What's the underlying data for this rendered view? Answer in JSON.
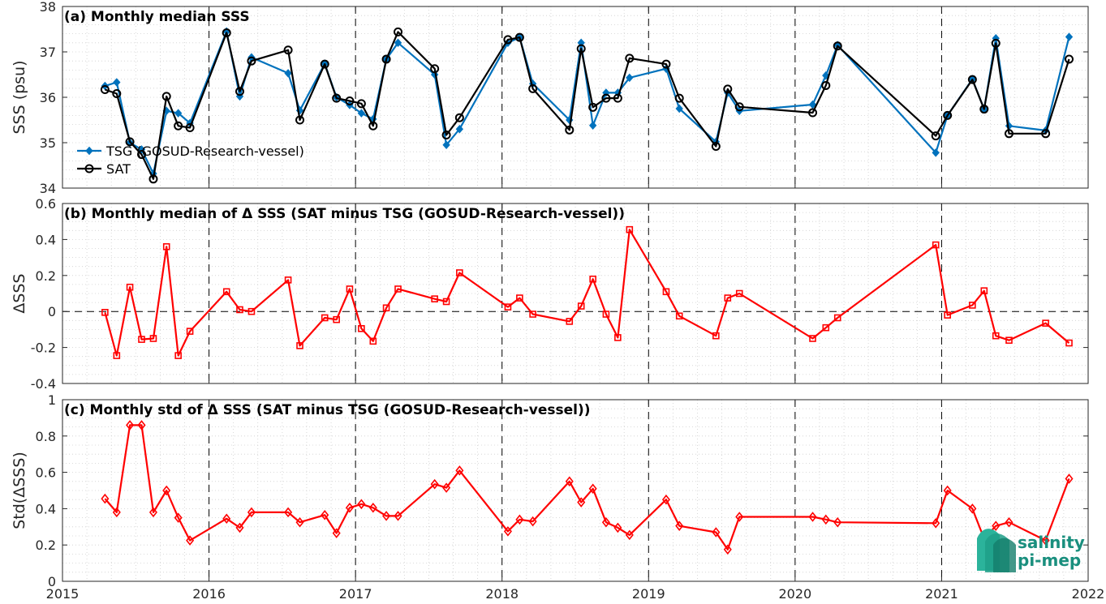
{
  "chart_data": [
    {
      "type": "line",
      "title": "(a) Monthly median SSS",
      "xlabel": "",
      "ylabel": "SSS (psu)",
      "xlim": [
        2015,
        2022
      ],
      "ylim": [
        34,
        38
      ],
      "xticks": [
        "2015",
        "2016",
        "2017",
        "2018",
        "2019",
        "2020",
        "2021",
        "2022"
      ],
      "yticks": [
        "34",
        "35",
        "36",
        "37",
        "38"
      ],
      "grid": true,
      "legend": "left",
      "series": [
        {
          "name": "TSG (GOSUD-Research-vessel)",
          "color": "#0072BD",
          "marker": "diamond-filled",
          "x": [
            2015.29,
            2015.37,
            2015.46,
            2015.54,
            2015.62,
            2015.71,
            2015.79,
            2015.87,
            2016.12,
            2016.21,
            2016.29,
            2016.54,
            2016.62,
            2016.79,
            2016.87,
            2016.96,
            2017.04,
            2017.12,
            2017.21,
            2017.29,
            2017.54,
            2017.62,
            2017.71,
            2018.04,
            2018.12,
            2018.21,
            2018.46,
            2018.54,
            2018.62,
            2018.71,
            2018.79,
            2018.87,
            2019.12,
            2019.21,
            2019.46,
            2019.54,
            2019.62,
            2020.12,
            2020.21,
            2020.29,
            2020.96,
            2021.04,
            2021.21,
            2021.29,
            2021.37,
            2021.46,
            2021.71,
            2021.87
          ],
          "y": [
            36.25,
            36.33,
            35.0,
            34.85,
            34.32,
            35.7,
            35.65,
            35.43,
            37.45,
            36.02,
            36.88,
            36.53,
            35.71,
            36.74,
            36.0,
            35.83,
            35.65,
            35.52,
            36.84,
            37.2,
            36.5,
            34.95,
            35.3,
            37.2,
            37.32,
            36.3,
            35.5,
            37.2,
            35.38,
            36.1,
            36.1,
            36.43,
            36.63,
            35.75,
            35.02,
            36.1,
            35.7,
            35.84,
            36.48,
            37.15,
            34.78,
            35.6,
            36.4,
            35.74,
            37.3,
            35.37,
            35.27,
            37.33
          ]
        },
        {
          "name": "SAT",
          "color": "#000000",
          "marker": "circle-open",
          "x": [
            2015.29,
            2015.37,
            2015.46,
            2015.54,
            2015.62,
            2015.71,
            2015.79,
            2015.87,
            2016.12,
            2016.21,
            2016.29,
            2016.54,
            2016.62,
            2016.79,
            2016.87,
            2016.96,
            2017.04,
            2017.12,
            2017.21,
            2017.29,
            2017.54,
            2017.62,
            2017.71,
            2018.04,
            2018.12,
            2018.21,
            2018.46,
            2018.54,
            2018.62,
            2018.71,
            2018.79,
            2018.87,
            2019.12,
            2019.21,
            2019.46,
            2019.54,
            2019.62,
            2020.12,
            2020.21,
            2020.29,
            2020.96,
            2021.04,
            2021.21,
            2021.29,
            2021.37,
            2021.46,
            2021.71,
            2021.87
          ],
          "y": [
            36.17,
            36.08,
            35.02,
            34.74,
            34.2,
            36.02,
            35.37,
            35.33,
            37.42,
            36.13,
            36.8,
            37.04,
            35.5,
            36.73,
            35.98,
            35.92,
            35.86,
            35.37,
            36.84,
            37.44,
            36.63,
            35.17,
            35.55,
            37.27,
            37.32,
            36.19,
            35.28,
            37.07,
            35.78,
            35.98,
            35.98,
            36.86,
            36.73,
            35.98,
            34.92,
            36.18,
            35.79,
            35.66,
            36.26,
            37.13,
            35.15,
            35.6,
            36.39,
            35.74,
            37.19,
            35.2,
            35.2,
            36.84
          ]
        }
      ]
    },
    {
      "type": "line",
      "title": "(b) Monthly median of Δ SSS (SAT minus TSG (GOSUD-Research-vessel))",
      "xlabel": "",
      "ylabel": "ΔSSS",
      "xlim": [
        2015,
        2022
      ],
      "ylim": [
        -0.4,
        0.6
      ],
      "xticks": [
        "2015",
        "2016",
        "2017",
        "2018",
        "2019",
        "2020",
        "2021",
        "2022"
      ],
      "yticks": [
        "-0.4",
        "-0.2",
        "0",
        "0.2",
        "0.4",
        "0.6"
      ],
      "grid": true,
      "zero_line": true,
      "series": [
        {
          "color": "#FF0000",
          "marker": "square-open",
          "x": [
            2015.29,
            2015.37,
            2015.46,
            2015.54,
            2015.62,
            2015.71,
            2015.79,
            2015.87,
            2016.12,
            2016.21,
            2016.29,
            2016.54,
            2016.62,
            2016.79,
            2016.87,
            2016.96,
            2017.04,
            2017.12,
            2017.21,
            2017.29,
            2017.54,
            2017.62,
            2017.71,
            2018.04,
            2018.12,
            2018.21,
            2018.46,
            2018.54,
            2018.62,
            2018.71,
            2018.79,
            2018.87,
            2019.12,
            2019.21,
            2019.46,
            2019.54,
            2019.62,
            2020.12,
            2020.21,
            2020.29,
            2020.96,
            2021.04,
            2021.21,
            2021.29,
            2021.37,
            2021.46,
            2021.71,
            2021.87
          ],
          "y": [
            -0.005,
            -0.245,
            0.135,
            -0.155,
            -0.15,
            0.36,
            -0.245,
            -0.11,
            0.11,
            0.01,
            0.0,
            0.175,
            -0.19,
            -0.035,
            -0.045,
            0.125,
            -0.095,
            -0.165,
            0.02,
            0.125,
            0.07,
            0.055,
            0.215,
            0.025,
            0.075,
            -0.015,
            -0.055,
            0.03,
            0.18,
            -0.015,
            -0.145,
            0.455,
            0.11,
            -0.025,
            -0.135,
            0.075,
            0.1,
            -0.15,
            -0.09,
            -0.035,
            0.37,
            -0.02,
            0.035,
            0.115,
            -0.135,
            -0.16,
            -0.065,
            -0.175
          ]
        }
      ]
    },
    {
      "type": "line",
      "title": "(c) Monthly std of Δ SSS (SAT minus TSG (GOSUD-Research-vessel))",
      "xlabel": "",
      "ylabel": "Std(ΔSSS)",
      "xlim": [
        2015,
        2022
      ],
      "ylim": [
        0,
        1
      ],
      "xticks": [
        "2015",
        "2016",
        "2017",
        "2018",
        "2019",
        "2020",
        "2021",
        "2022"
      ],
      "yticks": [
        "0",
        "0.2",
        "0.4",
        "0.6",
        "0.8",
        "1"
      ],
      "grid": true,
      "series": [
        {
          "color": "#FF0000",
          "marker": "diamond-open",
          "x": [
            2015.29,
            2015.37,
            2015.46,
            2015.54,
            2015.62,
            2015.71,
            2015.79,
            2015.87,
            2016.12,
            2016.21,
            2016.29,
            2016.54,
            2016.62,
            2016.79,
            2016.87,
            2016.96,
            2017.04,
            2017.12,
            2017.21,
            2017.29,
            2017.54,
            2017.62,
            2017.71,
            2018.04,
            2018.12,
            2018.21,
            2018.46,
            2018.54,
            2018.62,
            2018.71,
            2018.79,
            2018.87,
            2019.12,
            2019.21,
            2019.46,
            2019.54,
            2019.62,
            2020.12,
            2020.21,
            2020.29,
            2020.96,
            2021.04,
            2021.21,
            2021.29,
            2021.37,
            2021.46,
            2021.71,
            2021.87
          ],
          "y": [
            0.455,
            0.38,
            0.86,
            0.86,
            0.38,
            0.5,
            0.35,
            0.225,
            0.345,
            0.295,
            0.38,
            0.38,
            0.325,
            0.365,
            0.265,
            0.405,
            0.425,
            0.405,
            0.36,
            0.36,
            0.535,
            0.515,
            0.61,
            0.275,
            0.34,
            0.33,
            0.55,
            0.435,
            0.51,
            0.325,
            0.295,
            0.255,
            0.45,
            0.305,
            0.27,
            0.175,
            0.355,
            0.355,
            0.34,
            0.325,
            0.32,
            0.5,
            0.4,
            0.235,
            0.305,
            0.325,
            0.225,
            0.565
          ]
        }
      ]
    }
  ],
  "logo": {
    "line1": "salinity",
    "line2": "pi-mep"
  }
}
